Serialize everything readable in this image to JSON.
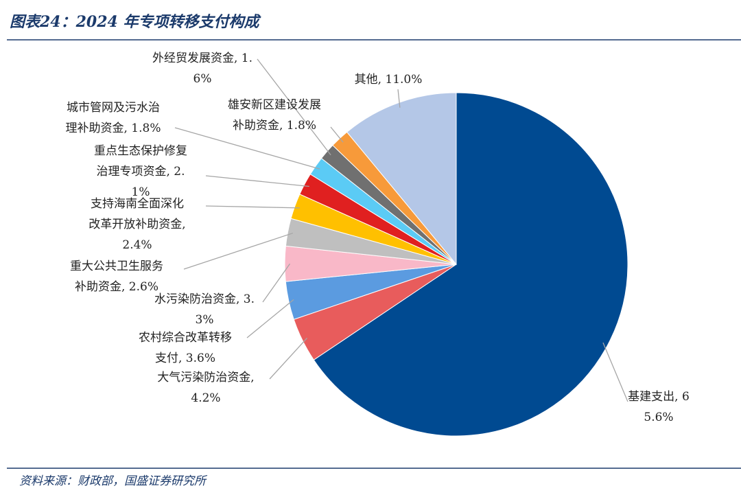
{
  "chart_data": {
    "type": "pie",
    "title": "图表24：2024 年专项转移支付构成",
    "source": "资料来源：财政部，国盛证券研究所",
    "categories": [
      "基建支出,",
      "大气污染防治资金,",
      "农村综合改革转移支付,",
      "水污染防治资金,",
      "重大公共卫生服务补助资金,",
      "支持海南全面深化改革开放补助资金,",
      "重点生态保护修复治理专项资金,",
      "城市管网及污水治理补助资金,",
      "外经贸发展资金,",
      "雄安新区建设发展补助资金,",
      "其他,"
    ],
    "values": [
      65.6,
      4.2,
      3.6,
      3.3,
      2.6,
      2.4,
      2.1,
      1.8,
      1.6,
      1.8,
      11.0
    ],
    "value_labels": [
      "65.6%",
      "4.2%",
      "3.6%",
      "3.3%",
      "2.6%",
      "2.4%",
      "2.1%",
      "1.8%",
      "1.6%",
      "1.8%",
      "11.0%"
    ],
    "colors": [
      "#004a91",
      "#e85c5c",
      "#5b9be0",
      "#f9b8c8",
      "#bfbfbf",
      "#ffc000",
      "#e02020",
      "#5bcbf5",
      "#707070",
      "#f79a3a",
      "#b4c7e7"
    ]
  }
}
